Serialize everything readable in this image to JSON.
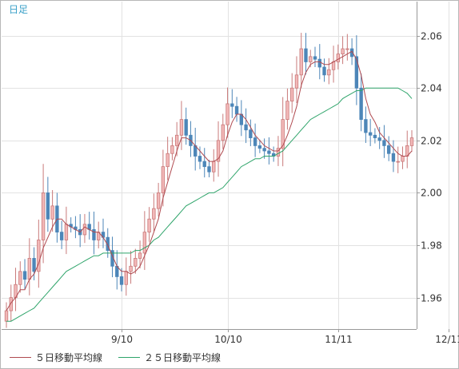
{
  "chart_data": {
    "type": "candlestick",
    "period_label": "日足",
    "x_tick_labels": [
      "9/10",
      "10/10",
      "11/11",
      "12/11"
    ],
    "x_tick_index": [
      25,
      48,
      72,
      96
    ],
    "y_ticks": [
      1.96,
      1.98,
      2.0,
      2.02,
      2.04,
      2.06
    ],
    "y_tick_labels": [
      "1.96",
      "1.98",
      "2.00",
      "2.02",
      "2.04",
      "2.06"
    ],
    "ylim": [
      1.948,
      2.073
    ],
    "grid": true,
    "legend_position": "bottom",
    "colors": {
      "up": "#f2b8b8",
      "up_edge": "#c97a7a",
      "down": "#4d86b8",
      "ma5": "#b04a50",
      "ma25": "#2ea46a",
      "grid": "#e2e2e2",
      "axis": "#999999"
    },
    "close": [
      1.955,
      1.96,
      1.965,
      1.97,
      1.967,
      1.975,
      1.97,
      1.982,
      2.0,
      1.99,
      1.995,
      1.985,
      1.982,
      1.988,
      1.987,
      1.986,
      1.984,
      1.988,
      1.986,
      1.982,
      1.985,
      1.983,
      1.978,
      1.972,
      1.968,
      1.965,
      1.97,
      1.972,
      1.975,
      1.977,
      1.985,
      1.99,
      1.994,
      2.0,
      2.01,
      2.015,
      2.018,
      2.022,
      2.028,
      2.022,
      2.018,
      2.014,
      2.012,
      2.01,
      2.008,
      2.012,
      2.02,
      2.026,
      2.034,
      2.033,
      2.03,
      2.026,
      2.024,
      2.021,
      2.018,
      2.017,
      2.016,
      2.015,
      2.014,
      2.017,
      2.028,
      2.035,
      2.04,
      2.045,
      2.055,
      2.05,
      2.052,
      2.051,
      2.048,
      2.045,
      2.047,
      2.05,
      2.053,
      2.055,
      2.055,
      2.052,
      2.04,
      2.028,
      2.023,
      2.022,
      2.021,
      2.02,
      2.018,
      2.015,
      2.012,
      2.012,
      2.014,
      2.018,
      2.021
    ],
    "series": [
      {
        "name": "５日移動平均線",
        "values": [
          1.955,
          1.958,
          1.96,
          1.963,
          1.963,
          1.967,
          1.969,
          1.973,
          1.979,
          1.983,
          1.987,
          1.99,
          1.99,
          1.988,
          1.987,
          1.986,
          1.985,
          1.987,
          1.986,
          1.985,
          1.985,
          1.983,
          1.98,
          1.976,
          1.972,
          1.97,
          1.97,
          1.969,
          1.97,
          1.972,
          1.976,
          1.98,
          1.985,
          1.99,
          1.998,
          2.004,
          2.01,
          2.016,
          2.021,
          2.021,
          2.02,
          2.018,
          2.016,
          2.014,
          2.012,
          2.012,
          2.013,
          2.016,
          2.022,
          2.027,
          2.03,
          2.03,
          2.028,
          2.025,
          2.022,
          2.02,
          2.018,
          2.017,
          2.016,
          2.016,
          2.018,
          2.022,
          2.027,
          2.033,
          2.041,
          2.046,
          2.049,
          2.05,
          2.05,
          2.049,
          2.049,
          2.05,
          2.051,
          2.052,
          2.053,
          2.054,
          2.051,
          2.045,
          2.036,
          2.03,
          2.027,
          2.023,
          2.021,
          2.019,
          2.017,
          2.015,
          2.014,
          2.014,
          2.016
        ]
      },
      {
        "name": "２５日移動平均線",
        "values": [
          1.951,
          1.951,
          1.952,
          1.953,
          1.954,
          1.955,
          1.956,
          1.958,
          1.96,
          1.962,
          1.964,
          1.966,
          1.968,
          1.97,
          1.971,
          1.972,
          1.973,
          1.974,
          1.975,
          1.976,
          1.976,
          1.977,
          1.977,
          1.977,
          1.977,
          1.977,
          1.977,
          1.977,
          1.978,
          1.978,
          1.979,
          1.98,
          1.982,
          1.983,
          1.985,
          1.987,
          1.989,
          1.991,
          1.993,
          1.995,
          1.996,
          1.997,
          1.998,
          1.999,
          2.0,
          2.0,
          2.001,
          2.002,
          2.004,
          2.006,
          2.008,
          2.01,
          2.011,
          2.012,
          2.013,
          2.013,
          2.014,
          2.014,
          2.014,
          2.015,
          2.016,
          2.018,
          2.02,
          2.022,
          2.024,
          2.026,
          2.028,
          2.029,
          2.03,
          2.031,
          2.032,
          2.033,
          2.034,
          2.036,
          2.037,
          2.038,
          2.039,
          2.039,
          2.04,
          2.04,
          2.04,
          2.04,
          2.04,
          2.04,
          2.04,
          2.04,
          2.039,
          2.038,
          2.036
        ]
      }
    ]
  }
}
